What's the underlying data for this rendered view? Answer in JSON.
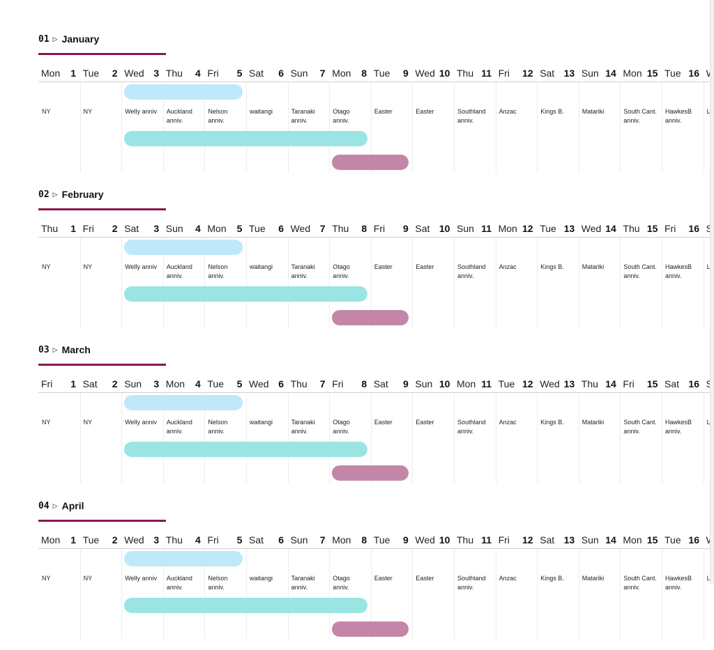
{
  "colors": {
    "accent": "#8a1550",
    "bar_blue": "#bfe9fa",
    "bar_teal": "#9be4e4",
    "bar_mauve": "#c486a8"
  },
  "holidays": [
    "NY",
    "NY",
    "Welly anniv",
    "Auckland\nanniv.",
    "Nelson\nanniv.",
    "waitangi",
    "Taranaki\nanniv.",
    "Otago\nanniv.",
    "Easter",
    "Easter",
    "Southland\nanniv.",
    "Anzac",
    "Kings B.",
    "Matariki",
    "South Cant.\nanniv.",
    "HawkesB\nanniv.",
    "La"
  ],
  "months": [
    {
      "num": "01",
      "arrow": "▷",
      "name": "January",
      "days": [
        [
          "Mon",
          "1"
        ],
        [
          "Tue",
          "2"
        ],
        [
          "Wed",
          "3"
        ],
        [
          "Thu",
          "4"
        ],
        [
          "Fri",
          "5"
        ],
        [
          "Sat",
          "6"
        ],
        [
          "Sun",
          "7"
        ],
        [
          "Mon",
          "8"
        ],
        [
          "Tue",
          "9"
        ],
        [
          "Wed",
          "10"
        ],
        [
          "Thu",
          "11"
        ],
        [
          "Fri",
          "12"
        ],
        [
          "Sat",
          "13"
        ],
        [
          "Sun",
          "14"
        ],
        [
          "Mon",
          "15"
        ],
        [
          "Tue",
          "16"
        ],
        [
          "W",
          ""
        ]
      ]
    },
    {
      "num": "02",
      "arrow": "▷",
      "name": "February",
      "days": [
        [
          "Thu",
          "1"
        ],
        [
          "Fri",
          "2"
        ],
        [
          "Sat",
          "3"
        ],
        [
          "Sun",
          "4"
        ],
        [
          "Mon",
          "5"
        ],
        [
          "Tue",
          "6"
        ],
        [
          "Wed",
          "7"
        ],
        [
          "Thu",
          "8"
        ],
        [
          "Fri",
          "9"
        ],
        [
          "Sat",
          "10"
        ],
        [
          "Sun",
          "11"
        ],
        [
          "Mon",
          "12"
        ],
        [
          "Tue",
          "13"
        ],
        [
          "Wed",
          "14"
        ],
        [
          "Thu",
          "15"
        ],
        [
          "Fri",
          "16"
        ],
        [
          "S",
          ""
        ]
      ]
    },
    {
      "num": "03",
      "arrow": "▷",
      "name": "March",
      "days": [
        [
          "Fri",
          "1"
        ],
        [
          "Sat",
          "2"
        ],
        [
          "Sun",
          "3"
        ],
        [
          "Mon",
          "4"
        ],
        [
          "Tue",
          "5"
        ],
        [
          "Wed",
          "6"
        ],
        [
          "Thu",
          "7"
        ],
        [
          "Fri",
          "8"
        ],
        [
          "Sat",
          "9"
        ],
        [
          "Sun",
          "10"
        ],
        [
          "Mon",
          "11"
        ],
        [
          "Tue",
          "12"
        ],
        [
          "Wed",
          "13"
        ],
        [
          "Thu",
          "14"
        ],
        [
          "Fri",
          "15"
        ],
        [
          "Sat",
          "16"
        ],
        [
          "S",
          ""
        ]
      ]
    },
    {
      "num": "04",
      "arrow": "▷",
      "name": "April",
      "days": [
        [
          "Mon",
          "1"
        ],
        [
          "Tue",
          "2"
        ],
        [
          "Wed",
          "3"
        ],
        [
          "Thu",
          "4"
        ],
        [
          "Fri",
          "5"
        ],
        [
          "Sat",
          "6"
        ],
        [
          "Sun",
          "7"
        ],
        [
          "Mon",
          "8"
        ],
        [
          "Tue",
          "9"
        ],
        [
          "Wed",
          "10"
        ],
        [
          "Thu",
          "11"
        ],
        [
          "Fri",
          "12"
        ],
        [
          "Sat",
          "13"
        ],
        [
          "Sun",
          "14"
        ],
        [
          "Mon",
          "15"
        ],
        [
          "Tue",
          "16"
        ],
        [
          "W",
          ""
        ]
      ]
    }
  ]
}
